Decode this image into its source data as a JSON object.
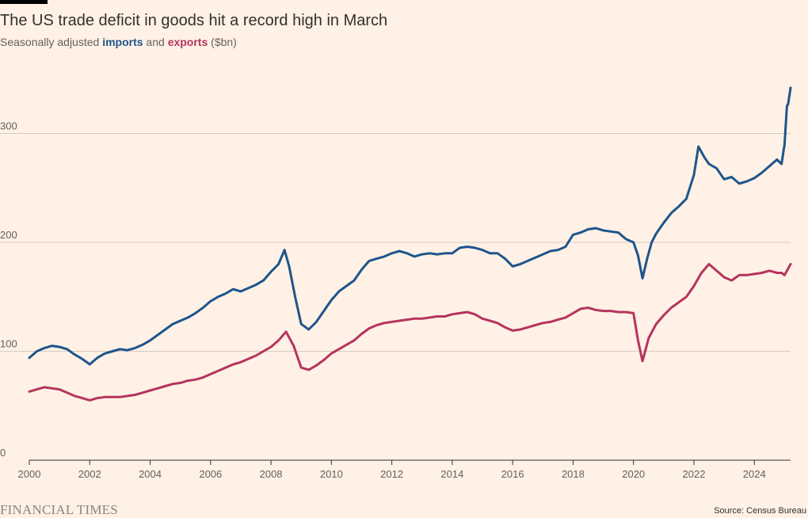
{
  "title": "The US trade deficit in goods hit a record high in March",
  "subtitle": {
    "prefix": "Seasonally adjusted ",
    "imports": "imports",
    "middle": " and ",
    "exports": "exports",
    "suffix": " ($bn)"
  },
  "footer": {
    "brand": "FINANCIAL TIMES",
    "source": "Source: Census Bureau"
  },
  "colors": {
    "background": "#fff1e5",
    "imports": "#1e558c",
    "exports": "#b5345f",
    "grid": "#d4cbc2",
    "axis": "#33302e"
  },
  "chart_data": {
    "type": "line",
    "xlim": [
      2000,
      2025.2
    ],
    "ylim": [
      0,
      350
    ],
    "x_ticks": [
      {
        "value": 2000,
        "label": "2000"
      },
      {
        "value": 2002,
        "label": "2002"
      },
      {
        "value": 2004,
        "label": "2004"
      },
      {
        "value": 2006,
        "label": "2006"
      },
      {
        "value": 2008,
        "label": "2008"
      },
      {
        "value": 2010,
        "label": "2010"
      },
      {
        "value": 2012,
        "label": "2012"
      },
      {
        "value": 2014,
        "label": "2014"
      },
      {
        "value": 2016,
        "label": "2016"
      },
      {
        "value": 2018,
        "label": "2018"
      },
      {
        "value": 2020,
        "label": "2020"
      },
      {
        "value": 2022,
        "label": "2022"
      },
      {
        "value": 2024,
        "label": "2024"
      }
    ],
    "y_ticks": [
      {
        "value": 0,
        "label": "0"
      },
      {
        "value": 100,
        "label": "100"
      },
      {
        "value": 200,
        "label": "200"
      },
      {
        "value": 300,
        "label": "300"
      }
    ],
    "grid": true,
    "series": [
      {
        "name": "imports",
        "color": "#1e558c",
        "points": [
          [
            2000.0,
            94
          ],
          [
            2000.25,
            100
          ],
          [
            2000.5,
            103
          ],
          [
            2000.75,
            105
          ],
          [
            2001.0,
            104
          ],
          [
            2001.25,
            102
          ],
          [
            2001.5,
            97
          ],
          [
            2001.75,
            93
          ],
          [
            2002.0,
            88
          ],
          [
            2002.25,
            94
          ],
          [
            2002.5,
            98
          ],
          [
            2002.75,
            100
          ],
          [
            2003.0,
            102
          ],
          [
            2003.25,
            101
          ],
          [
            2003.5,
            103
          ],
          [
            2003.75,
            106
          ],
          [
            2004.0,
            110
          ],
          [
            2004.25,
            115
          ],
          [
            2004.5,
            120
          ],
          [
            2004.75,
            125
          ],
          [
            2005.0,
            128
          ],
          [
            2005.25,
            131
          ],
          [
            2005.5,
            135
          ],
          [
            2005.75,
            140
          ],
          [
            2006.0,
            146
          ],
          [
            2006.25,
            150
          ],
          [
            2006.5,
            153
          ],
          [
            2006.75,
            157
          ],
          [
            2007.0,
            155
          ],
          [
            2007.25,
            158
          ],
          [
            2007.5,
            161
          ],
          [
            2007.75,
            165
          ],
          [
            2008.0,
            173
          ],
          [
            2008.25,
            180
          ],
          [
            2008.45,
            193
          ],
          [
            2008.6,
            178
          ],
          [
            2008.8,
            150
          ],
          [
            2009.0,
            125
          ],
          [
            2009.25,
            120
          ],
          [
            2009.5,
            127
          ],
          [
            2009.75,
            137
          ],
          [
            2010.0,
            147
          ],
          [
            2010.25,
            155
          ],
          [
            2010.5,
            160
          ],
          [
            2010.75,
            165
          ],
          [
            2011.0,
            175
          ],
          [
            2011.25,
            183
          ],
          [
            2011.5,
            185
          ],
          [
            2011.75,
            187
          ],
          [
            2012.0,
            190
          ],
          [
            2012.25,
            192
          ],
          [
            2012.5,
            190
          ],
          [
            2012.75,
            187
          ],
          [
            2013.0,
            189
          ],
          [
            2013.25,
            190
          ],
          [
            2013.5,
            189
          ],
          [
            2013.75,
            190
          ],
          [
            2014.0,
            190
          ],
          [
            2014.25,
            195
          ],
          [
            2014.5,
            196
          ],
          [
            2014.75,
            195
          ],
          [
            2015.0,
            193
          ],
          [
            2015.25,
            190
          ],
          [
            2015.5,
            190
          ],
          [
            2015.75,
            185
          ],
          [
            2016.0,
            178
          ],
          [
            2016.25,
            180
          ],
          [
            2016.5,
            183
          ],
          [
            2016.75,
            186
          ],
          [
            2017.0,
            189
          ],
          [
            2017.25,
            192
          ],
          [
            2017.5,
            193
          ],
          [
            2017.75,
            196
          ],
          [
            2018.0,
            207
          ],
          [
            2018.25,
            209
          ],
          [
            2018.5,
            212
          ],
          [
            2018.75,
            213
          ],
          [
            2019.0,
            211
          ],
          [
            2019.25,
            210
          ],
          [
            2019.5,
            209
          ],
          [
            2019.75,
            203
          ],
          [
            2020.0,
            200
          ],
          [
            2020.15,
            188
          ],
          [
            2020.3,
            167
          ],
          [
            2020.45,
            185
          ],
          [
            2020.6,
            200
          ],
          [
            2020.75,
            208
          ],
          [
            2021.0,
            218
          ],
          [
            2021.25,
            227
          ],
          [
            2021.5,
            233
          ],
          [
            2021.75,
            240
          ],
          [
            2022.0,
            262
          ],
          [
            2022.15,
            288
          ],
          [
            2022.35,
            278
          ],
          [
            2022.5,
            272
          ],
          [
            2022.75,
            268
          ],
          [
            2023.0,
            258
          ],
          [
            2023.25,
            260
          ],
          [
            2023.5,
            254
          ],
          [
            2023.75,
            256
          ],
          [
            2024.0,
            259
          ],
          [
            2024.25,
            264
          ],
          [
            2024.5,
            270
          ],
          [
            2024.75,
            276
          ],
          [
            2024.9,
            272
          ],
          [
            2025.0,
            290
          ],
          [
            2025.08,
            325
          ],
          [
            2025.12,
            327
          ],
          [
            2025.2,
            342
          ]
        ]
      },
      {
        "name": "exports",
        "color": "#b5345f",
        "points": [
          [
            2000.0,
            63
          ],
          [
            2000.25,
            65
          ],
          [
            2000.5,
            67
          ],
          [
            2000.75,
            66
          ],
          [
            2001.0,
            65
          ],
          [
            2001.25,
            62
          ],
          [
            2001.5,
            59
          ],
          [
            2001.75,
            57
          ],
          [
            2002.0,
            55
          ],
          [
            2002.25,
            57
          ],
          [
            2002.5,
            58
          ],
          [
            2002.75,
            58
          ],
          [
            2003.0,
            58
          ],
          [
            2003.25,
            59
          ],
          [
            2003.5,
            60
          ],
          [
            2003.75,
            62
          ],
          [
            2004.0,
            64
          ],
          [
            2004.25,
            66
          ],
          [
            2004.5,
            68
          ],
          [
            2004.75,
            70
          ],
          [
            2005.0,
            71
          ],
          [
            2005.25,
            73
          ],
          [
            2005.5,
            74
          ],
          [
            2005.75,
            76
          ],
          [
            2006.0,
            79
          ],
          [
            2006.25,
            82
          ],
          [
            2006.5,
            85
          ],
          [
            2006.75,
            88
          ],
          [
            2007.0,
            90
          ],
          [
            2007.25,
            93
          ],
          [
            2007.5,
            96
          ],
          [
            2007.75,
            100
          ],
          [
            2008.0,
            104
          ],
          [
            2008.25,
            110
          ],
          [
            2008.5,
            118
          ],
          [
            2008.75,
            105
          ],
          [
            2009.0,
            85
          ],
          [
            2009.25,
            83
          ],
          [
            2009.5,
            87
          ],
          [
            2009.75,
            92
          ],
          [
            2010.0,
            98
          ],
          [
            2010.25,
            102
          ],
          [
            2010.5,
            106
          ],
          [
            2010.75,
            110
          ],
          [
            2011.0,
            116
          ],
          [
            2011.25,
            121
          ],
          [
            2011.5,
            124
          ],
          [
            2011.75,
            126
          ],
          [
            2012.0,
            127
          ],
          [
            2012.25,
            128
          ],
          [
            2012.5,
            129
          ],
          [
            2012.75,
            130
          ],
          [
            2013.0,
            130
          ],
          [
            2013.25,
            131
          ],
          [
            2013.5,
            132
          ],
          [
            2013.75,
            132
          ],
          [
            2014.0,
            134
          ],
          [
            2014.25,
            135
          ],
          [
            2014.5,
            136
          ],
          [
            2014.75,
            134
          ],
          [
            2015.0,
            130
          ],
          [
            2015.25,
            128
          ],
          [
            2015.5,
            126
          ],
          [
            2015.75,
            122
          ],
          [
            2016.0,
            119
          ],
          [
            2016.25,
            120
          ],
          [
            2016.5,
            122
          ],
          [
            2016.75,
            124
          ],
          [
            2017.0,
            126
          ],
          [
            2017.25,
            127
          ],
          [
            2017.5,
            129
          ],
          [
            2017.75,
            131
          ],
          [
            2018.0,
            135
          ],
          [
            2018.25,
            139
          ],
          [
            2018.5,
            140
          ],
          [
            2018.75,
            138
          ],
          [
            2019.0,
            137
          ],
          [
            2019.25,
            137
          ],
          [
            2019.5,
            136
          ],
          [
            2019.75,
            136
          ],
          [
            2020.0,
            135
          ],
          [
            2020.15,
            110
          ],
          [
            2020.3,
            91
          ],
          [
            2020.5,
            112
          ],
          [
            2020.75,
            125
          ],
          [
            2021.0,
            133
          ],
          [
            2021.25,
            140
          ],
          [
            2021.5,
            145
          ],
          [
            2021.75,
            150
          ],
          [
            2022.0,
            160
          ],
          [
            2022.25,
            172
          ],
          [
            2022.5,
            180
          ],
          [
            2022.75,
            174
          ],
          [
            2023.0,
            168
          ],
          [
            2023.25,
            165
          ],
          [
            2023.5,
            170
          ],
          [
            2023.75,
            170
          ],
          [
            2024.0,
            171
          ],
          [
            2024.25,
            172
          ],
          [
            2024.5,
            174
          ],
          [
            2024.75,
            172
          ],
          [
            2024.9,
            172
          ],
          [
            2025.0,
            170
          ],
          [
            2025.2,
            180
          ]
        ]
      }
    ]
  }
}
